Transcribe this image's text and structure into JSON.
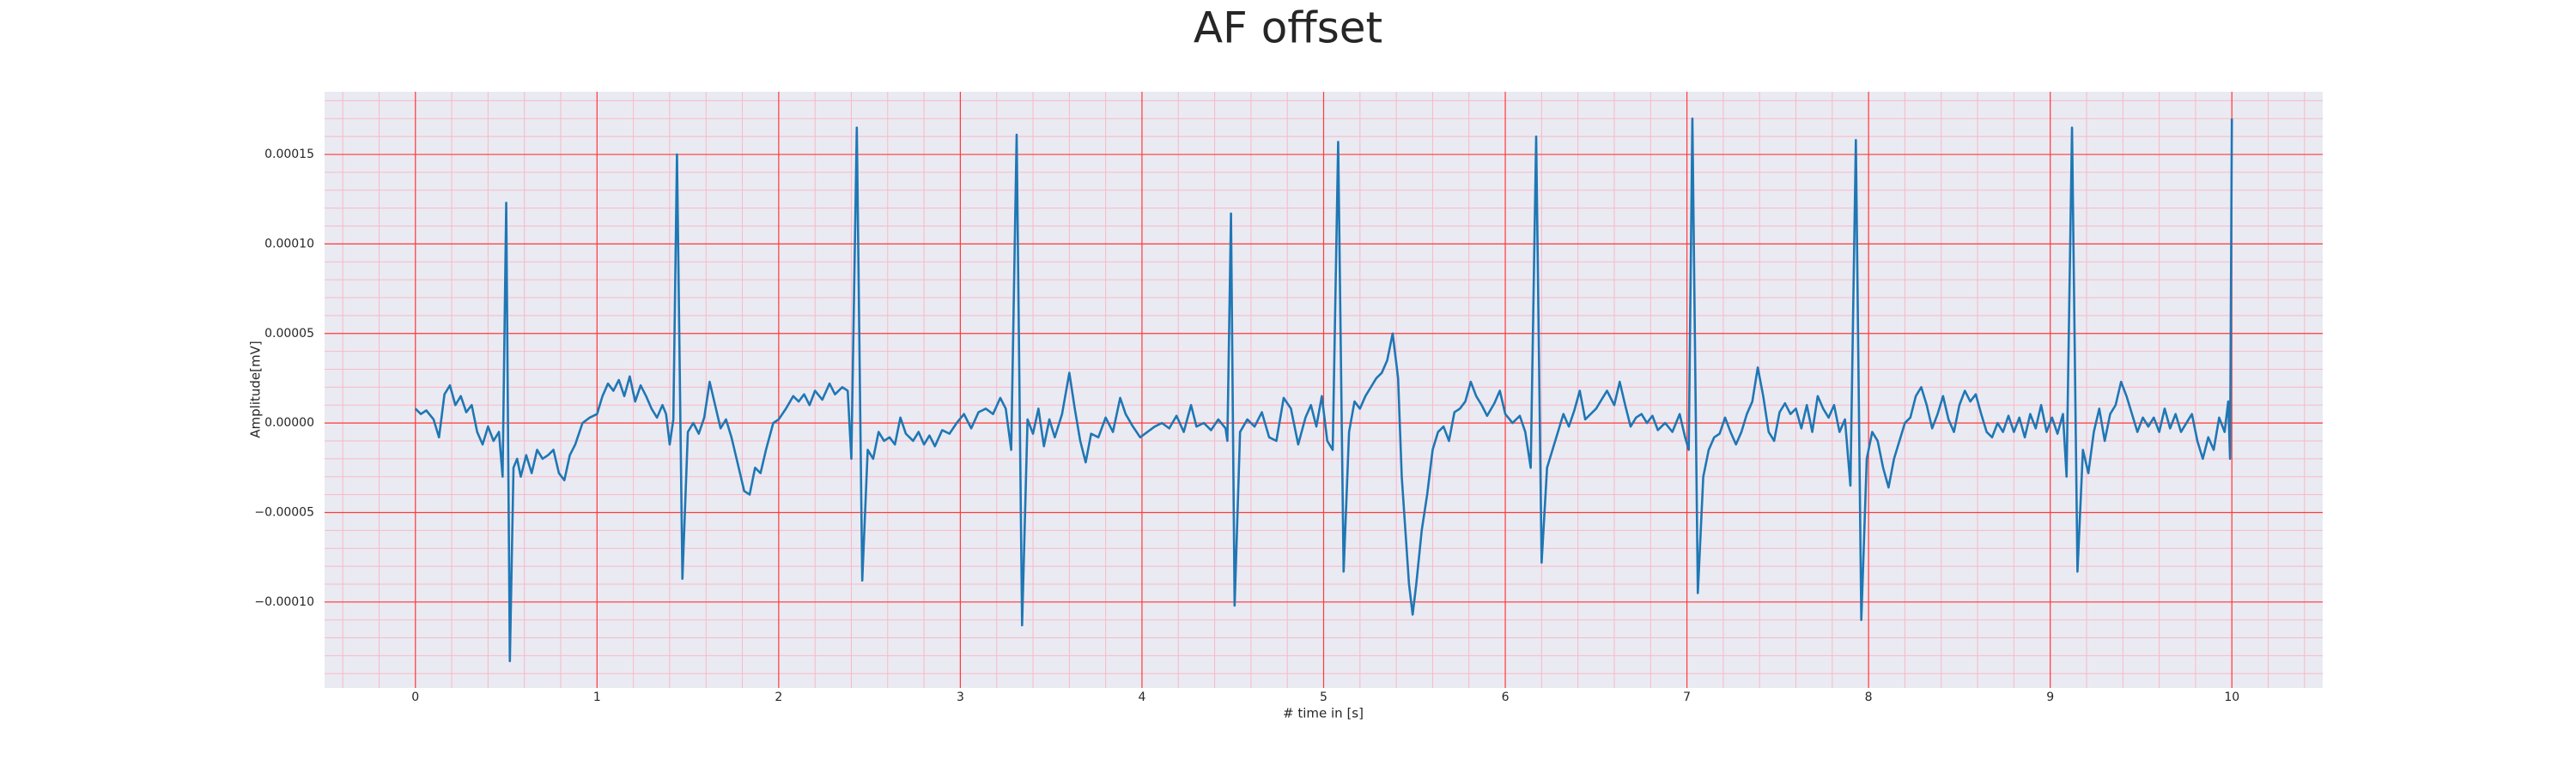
{
  "chart_data": {
    "type": "line",
    "title": "AF offset",
    "xlabel": "# time in [s]",
    "ylabel": "Amplitude[mV]",
    "color": "#1f77b4",
    "background": "#eaeaf2",
    "grid_color": "#ff3b3b",
    "minor_grid_color": "#f7b9c8",
    "xlim": [
      -0.5,
      10.5
    ],
    "ylim": [
      -0.000148,
      0.000185
    ],
    "xticks": [
      0,
      1,
      2,
      3,
      4,
      5,
      6,
      7,
      8,
      9,
      10
    ],
    "yticks": [
      {
        "value": -0.0001,
        "label": "−0.00010"
      },
      {
        "value": -5e-05,
        "label": "−0.00005"
      },
      {
        "value": 0,
        "label": "0.00000"
      },
      {
        "value": 5e-05,
        "label": "0.00005"
      },
      {
        "value": 0.0001,
        "label": "0.00010"
      },
      {
        "value": 0.00015,
        "label": "0.00015"
      }
    ],
    "xminorticks": [
      -0.4,
      -0.2,
      0,
      0.2,
      0.4,
      0.6,
      0.8,
      1,
      1.2,
      1.4,
      1.6,
      1.8,
      2,
      2.2,
      2.4,
      2.6,
      2.8,
      3,
      3.2,
      3.4,
      3.6,
      3.8,
      4,
      4.2,
      4.4,
      4.6,
      4.8,
      5,
      5.2,
      5.4,
      5.6,
      5.8,
      6,
      6.2,
      6.4,
      6.6,
      6.8,
      7,
      7.2,
      7.4,
      7.6,
      7.8,
      8,
      8.2,
      8.4,
      8.6,
      8.8,
      9,
      9.2,
      9.4,
      9.6,
      9.8,
      10,
      10.2,
      10.4
    ],
    "yminorticks": [
      -0.00014,
      -0.00013,
      -0.00012,
      -0.00011,
      -0.0001,
      -9e-05,
      -8e-05,
      -7e-05,
      -6e-05,
      -5e-05,
      -4e-05,
      -3e-05,
      -2e-05,
      -1e-05,
      0,
      1e-05,
      2e-05,
      3e-05,
      4e-05,
      5e-05,
      6e-05,
      7e-05,
      8e-05,
      9e-05,
      0.0001,
      0.00011,
      0.00012,
      0.00013,
      0.00014,
      0.00015,
      0.00016,
      0.00017,
      0.00018
    ],
    "grid": true,
    "x": [
      0.0,
      0.03,
      0.06,
      0.1,
      0.13,
      0.16,
      0.19,
      0.22,
      0.25,
      0.28,
      0.31,
      0.34,
      0.37,
      0.4,
      0.43,
      0.46,
      0.48,
      0.5,
      0.52,
      0.54,
      0.56,
      0.58,
      0.61,
      0.64,
      0.67,
      0.7,
      0.73,
      0.76,
      0.79,
      0.82,
      0.85,
      0.88,
      0.92,
      0.96,
      1.0,
      1.03,
      1.06,
      1.09,
      1.12,
      1.15,
      1.18,
      1.21,
      1.24,
      1.27,
      1.3,
      1.33,
      1.36,
      1.38,
      1.4,
      1.42,
      1.44,
      1.47,
      1.5,
      1.53,
      1.56,
      1.59,
      1.62,
      1.65,
      1.68,
      1.71,
      1.74,
      1.78,
      1.81,
      1.84,
      1.87,
      1.9,
      1.93,
      1.97,
      2.0,
      2.04,
      2.08,
      2.11,
      2.14,
      2.17,
      2.2,
      2.24,
      2.28,
      2.31,
      2.35,
      2.38,
      2.4,
      2.43,
      2.46,
      2.49,
      2.52,
      2.55,
      2.58,
      2.61,
      2.64,
      2.67,
      2.7,
      2.74,
      2.77,
      2.8,
      2.83,
      2.86,
      2.9,
      2.94,
      2.98,
      3.02,
      3.06,
      3.1,
      3.14,
      3.18,
      3.22,
      3.25,
      3.28,
      3.31,
      3.34,
      3.37,
      3.4,
      3.43,
      3.46,
      3.49,
      3.52,
      3.56,
      3.6,
      3.63,
      3.66,
      3.69,
      3.72,
      3.76,
      3.8,
      3.84,
      3.88,
      3.91,
      3.95,
      3.99,
      4.03,
      4.07,
      4.11,
      4.15,
      4.19,
      4.23,
      4.27,
      4.3,
      4.34,
      4.38,
      4.42,
      4.46,
      4.47,
      4.49,
      4.51,
      4.54,
      4.58,
      4.62,
      4.66,
      4.7,
      4.74,
      4.78,
      4.82,
      4.86,
      4.9,
      4.93,
      4.96,
      4.99,
      5.02,
      5.05,
      5.08,
      5.11,
      5.14,
      5.17,
      5.2,
      5.23,
      5.26,
      5.29,
      5.32,
      5.35,
      5.38,
      5.41,
      5.43,
      5.45,
      5.47,
      5.49,
      5.51,
      5.54,
      5.57,
      5.6,
      5.63,
      5.66,
      5.69,
      5.72,
      5.75,
      5.78,
      5.81,
      5.84,
      5.87,
      5.9,
      5.94,
      5.97,
      6.0,
      6.04,
      6.08,
      6.11,
      6.14,
      6.17,
      6.2,
      6.23,
      6.26,
      6.29,
      6.32,
      6.35,
      6.38,
      6.41,
      6.44,
      6.47,
      6.5,
      6.53,
      6.56,
      6.6,
      6.63,
      6.66,
      6.69,
      6.72,
      6.75,
      6.78,
      6.81,
      6.84,
      6.88,
      6.92,
      6.96,
      6.99,
      7.01,
      7.03,
      7.06,
      7.09,
      7.12,
      7.15,
      7.18,
      7.21,
      7.24,
      7.27,
      7.3,
      7.33,
      7.36,
      7.39,
      7.42,
      7.45,
      7.48,
      7.51,
      7.54,
      7.57,
      7.6,
      7.63,
      7.66,
      7.69,
      7.72,
      7.75,
      7.78,
      7.81,
      7.84,
      7.87,
      7.9,
      7.93,
      7.96,
      7.99,
      8.02,
      8.05,
      8.08,
      8.11,
      8.14,
      8.17,
      8.2,
      8.23,
      8.26,
      8.29,
      8.32,
      8.35,
      8.38,
      8.41,
      8.44,
      8.47,
      8.5,
      8.53,
      8.56,
      8.59,
      8.62,
      8.65,
      8.68,
      8.71,
      8.74,
      8.77,
      8.8,
      8.83,
      8.86,
      8.89,
      8.92,
      8.95,
      8.98,
      9.01,
      9.04,
      9.07,
      9.09,
      9.12,
      9.15,
      9.18,
      9.21,
      9.24,
      9.27,
      9.3,
      9.33,
      9.36,
      9.39,
      9.42,
      9.45,
      9.48,
      9.51,
      9.54,
      9.57,
      9.6,
      9.63,
      9.66,
      9.69,
      9.72,
      9.75,
      9.78,
      9.81,
      9.84,
      9.87,
      9.9,
      9.93,
      9.96,
      9.98,
      9.99,
      10.0
    ],
    "values": [
      8e-06,
      5e-06,
      7e-06,
      2e-06,
      -8e-06,
      1.6e-05,
      2.1e-05,
      1e-05,
      1.5e-05,
      6e-06,
      1e-05,
      -5e-06,
      -1.2e-05,
      -2e-06,
      -1e-05,
      -5e-06,
      -3e-05,
      0.000123,
      -0.000133,
      -2.5e-05,
      -2e-05,
      -3e-05,
      -1.8e-05,
      -2.8e-05,
      -1.5e-05,
      -2e-05,
      -1.8e-05,
      -1.5e-05,
      -2.8e-05,
      -3.2e-05,
      -1.8e-05,
      -1.2e-05,
      0,
      3e-06,
      5e-06,
      1.5e-05,
      2.2e-05,
      1.8e-05,
      2.4e-05,
      1.5e-05,
      2.6e-05,
      1.2e-05,
      2.1e-05,
      1.5e-05,
      8e-06,
      3e-06,
      1e-05,
      5e-06,
      -1.2e-05,
      2e-06,
      0.00015,
      -8.7e-05,
      -5e-06,
      0,
      -6e-06,
      3e-06,
      2.3e-05,
      1e-05,
      -3e-06,
      2e-06,
      -8e-06,
      -2.5e-05,
      -3.8e-05,
      -4e-05,
      -2.5e-05,
      -2.8e-05,
      -1.5e-05,
      0,
      2e-06,
      8e-06,
      1.5e-05,
      1.2e-05,
      1.6e-05,
      1e-05,
      1.8e-05,
      1.3e-05,
      2.2e-05,
      1.6e-05,
      2e-05,
      1.8e-05,
      -2e-05,
      0.000165,
      -8.8e-05,
      -1.5e-05,
      -2e-05,
      -5e-06,
      -1e-05,
      -8e-06,
      -1.2e-05,
      3e-06,
      -6e-06,
      -1e-05,
      -5e-06,
      -1.2e-05,
      -7e-06,
      -1.3e-05,
      -4e-06,
      -6e-06,
      0,
      5e-06,
      -3e-06,
      6e-06,
      8e-06,
      5e-06,
      1.4e-05,
      8e-06,
      -1.5e-05,
      0.000161,
      -0.000113,
      2e-06,
      -6e-06,
      8e-06,
      -1.3e-05,
      2e-06,
      -8e-06,
      5e-06,
      2.8e-05,
      8e-06,
      -1e-05,
      -2.2e-05,
      -6e-06,
      -8e-06,
      3e-06,
      -5e-06,
      1.4e-05,
      5e-06,
      -2e-06,
      -8e-06,
      -5e-06,
      -2e-06,
      0,
      -3e-06,
      4e-06,
      -5e-06,
      1e-05,
      -2e-06,
      0,
      -4e-06,
      2e-06,
      -3e-06,
      -1e-05,
      0.000117,
      -0.000102,
      -5e-06,
      2e-06,
      -2e-06,
      6e-06,
      -8e-06,
      -1e-05,
      1.4e-05,
      8e-06,
      -1.2e-05,
      3e-06,
      1e-05,
      -2e-06,
      1.5e-05,
      -1e-05,
      -1.5e-05,
      0.000157,
      -8.3e-05,
      -5e-06,
      1.2e-05,
      8e-06,
      1.5e-05,
      2e-05,
      2.5e-05,
      2.8e-05,
      3.5e-05,
      5e-05,
      2.5e-05,
      -3e-05,
      -6e-05,
      -9e-05,
      -0.000107,
      -9e-05,
      -6e-05,
      -4e-05,
      -1.5e-05,
      -5e-06,
      -2e-06,
      -1e-05,
      6e-06,
      8e-06,
      1.2e-05,
      2.3e-05,
      1.5e-05,
      1e-05,
      4e-06,
      1.1e-05,
      1.8e-05,
      5e-06,
      0,
      4e-06,
      -5e-06,
      -2.5e-05,
      0.00016,
      -7.8e-05,
      -2.5e-05,
      -1.5e-05,
      -5e-06,
      5e-06,
      -2e-06,
      7e-06,
      1.8e-05,
      2e-06,
      5e-06,
      8e-06,
      1.3e-05,
      1.8e-05,
      1e-05,
      2.3e-05,
      1e-05,
      -2e-06,
      3e-06,
      5e-06,
      0,
      4e-06,
      -4e-06,
      0,
      -5e-06,
      5e-06,
      -8e-06,
      -1.5e-05,
      0.00017,
      -9.5e-05,
      -3e-05,
      -1.5e-05,
      -8e-06,
      -6e-06,
      3e-06,
      -5e-06,
      -1.2e-05,
      -5e-06,
      5e-06,
      1.2e-05,
      3.1e-05,
      1.5e-05,
      -5e-06,
      -1e-05,
      6e-06,
      1.1e-05,
      5e-06,
      8e-06,
      -3e-06,
      1e-05,
      -5e-06,
      1.5e-05,
      8e-06,
      3e-06,
      1e-05,
      -5e-06,
      2e-06,
      -3.5e-05,
      0.000158,
      -0.00011,
      -2e-05,
      -5e-06,
      -1e-05,
      -2.5e-05,
      -3.6e-05,
      -2e-05,
      -1e-05,
      0,
      3e-06,
      1.5e-05,
      2e-05,
      1e-05,
      -3e-06,
      5e-06,
      1.5e-05,
      2e-06,
      -5e-06,
      1e-05,
      1.8e-05,
      1.2e-05,
      1.6e-05,
      5e-06,
      -5e-06,
      -8e-06,
      0,
      -5e-06,
      4e-06,
      -5e-06,
      3e-06,
      -8e-06,
      5e-06,
      -3e-06,
      1e-05,
      -5e-06,
      3e-06,
      -6e-06,
      5e-06,
      -3e-05,
      0.000165,
      -8.3e-05,
      -1.5e-05,
      -2.8e-05,
      -5e-06,
      8e-06,
      -1e-05,
      5e-06,
      1e-05,
      2.3e-05,
      1.5e-05,
      5e-06,
      -5e-06,
      3e-06,
      -2e-06,
      3e-06,
      -5e-06,
      8e-06,
      -3e-06,
      5e-06,
      -5e-06,
      0,
      5e-06,
      -1e-05,
      -2e-05,
      -8e-06,
      -1.5e-05,
      3e-06,
      -5e-06,
      1.2e-05,
      -2e-05,
      0.00017
    ]
  }
}
